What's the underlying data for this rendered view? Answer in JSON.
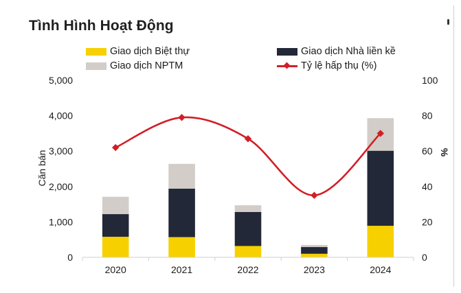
{
  "title": "Tình Hình Hoạt Động",
  "legend": {
    "villa": "Giao dịch Biệt thự",
    "townhouse": "Giao dịch Nhà liền kề",
    "nptm": "Giao dịch NPTM",
    "absorption": "Tỷ lệ hấp thụ (%)"
  },
  "colors": {
    "villa": "#f7d000",
    "townhouse": "#232838",
    "nptm": "#d2cdc8",
    "absorption": "#d11f26"
  },
  "chart_data": {
    "type": "bar",
    "stacked": true,
    "categories": [
      "2020",
      "2021",
      "2022",
      "2023",
      "2024"
    ],
    "series": [
      {
        "name": "Giao dịch Biệt thự",
        "color": "#f7d000",
        "values": [
          580,
          570,
          320,
          100,
          890
        ]
      },
      {
        "name": "Giao dịch Nhà liền kề",
        "color": "#232838",
        "values": [
          640,
          1370,
          960,
          190,
          2120
        ]
      },
      {
        "name": "Giao dịch NPTM",
        "color": "#d2cdc8",
        "values": [
          490,
          700,
          190,
          60,
          920
        ]
      }
    ],
    "line_series": {
      "name": "Tỷ lệ hấp thụ (%)",
      "color": "#d11f26",
      "axis": "right",
      "values": [
        62,
        79,
        67,
        35,
        70
      ]
    },
    "ylabel": "Căn bán",
    "y2label": "%",
    "ylim": [
      0,
      5000
    ],
    "y2lim": [
      0,
      100
    ],
    "yticks": [
      "0",
      "1,000",
      "2,000",
      "3,000",
      "4,000",
      "5,000"
    ],
    "y2ticks": [
      "0",
      "20",
      "40",
      "60",
      "80",
      "100"
    ],
    "grid": false,
    "legend_position": "top"
  }
}
